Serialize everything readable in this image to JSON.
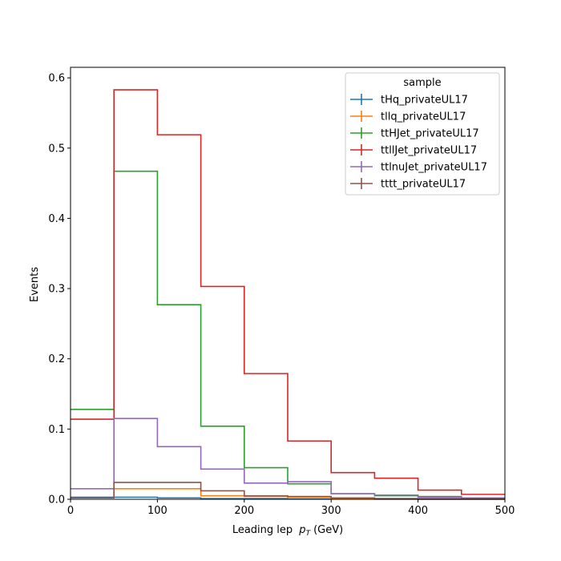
{
  "chart_data": {
    "type": "histogram",
    "xlabel": "Leading lep",
    "xlabel_sym": "p",
    "xlabel_sub": "T",
    "xlabel_unit": "(GeV)",
    "ylabel": "Events",
    "xlim": [
      0,
      500
    ],
    "ylim": [
      0,
      0.615
    ],
    "xticks": [
      0,
      100,
      200,
      300,
      400,
      500
    ],
    "yticks": [
      0.0,
      0.1,
      0.2,
      0.3,
      0.4,
      0.5,
      0.6
    ],
    "ytick_labels": [
      "0.0",
      "0.1",
      "0.2",
      "0.3",
      "0.4",
      "0.5",
      "0.6"
    ],
    "bin_edges": [
      0,
      50,
      100,
      150,
      200,
      250,
      300,
      350,
      400,
      450,
      500
    ],
    "legend": {
      "title": "sample",
      "position": "top-right"
    },
    "grid": false,
    "series": [
      {
        "name": "tHq_privateUL17",
        "color": "#1f77b4",
        "values": [
          0.003,
          0.003,
          0.002,
          0.001,
          0.001,
          0.0005,
          0.0003,
          0.0002,
          0.0001,
          0.0001
        ]
      },
      {
        "name": "tllq_privateUL17",
        "color": "#ff7f0e",
        "values": [
          0.002,
          0.015,
          0.015,
          0.005,
          0.004,
          0.003,
          0.001,
          0.001,
          0.0005,
          0.0005
        ]
      },
      {
        "name": "ttHJet_privateUL17",
        "color": "#2ca02c",
        "values": [
          0.128,
          0.467,
          0.277,
          0.104,
          0.045,
          0.022,
          0.008,
          0.005,
          0.004,
          0.002
        ]
      },
      {
        "name": "ttllJet_privateUL17",
        "color": "#d62728",
        "values": [
          0.114,
          0.583,
          0.519,
          0.303,
          0.179,
          0.083,
          0.038,
          0.03,
          0.013,
          0.007
        ]
      },
      {
        "name": "ttlnuJet_privateUL17",
        "color": "#9467bd",
        "values": [
          0.015,
          0.115,
          0.075,
          0.043,
          0.023,
          0.025,
          0.008,
          0.006,
          0.003,
          0.002
        ]
      },
      {
        "name": "tttt_privateUL17",
        "color": "#8c564b",
        "values": [
          0.002,
          0.024,
          0.024,
          0.012,
          0.005,
          0.004,
          0.002,
          0.001,
          0.001,
          0.001
        ]
      }
    ]
  }
}
